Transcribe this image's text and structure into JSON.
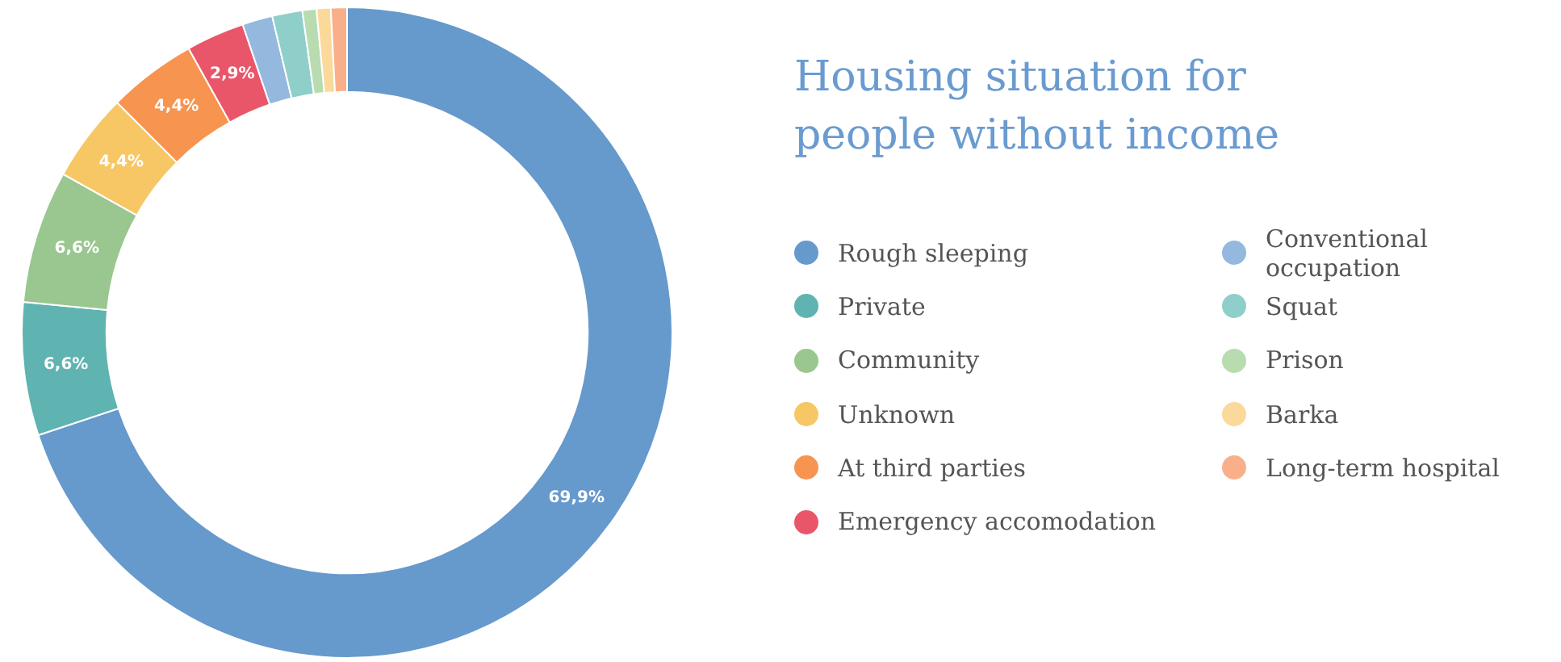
{
  "chart_data": {
    "type": "donut",
    "title": "Housing situation for people without income",
    "categories": [
      "Rough sleeping",
      "Private",
      "Community",
      "Unknown",
      "At third parties",
      "Emergency accomodation",
      "Conventional occupation",
      "Squat",
      "Prison",
      "Barka",
      "Long-term hospital"
    ],
    "values": [
      69.9,
      6.6,
      6.6,
      4.4,
      4.4,
      2.9,
      1.5,
      1.5,
      0.7,
      0.7,
      0.8
    ],
    "value_labels": [
      "69,9%",
      "6,6%",
      "6,6%",
      "4,4%",
      "4,4%",
      "2,9%",
      null,
      null,
      null,
      null,
      null
    ],
    "colors": [
      "#6699cc",
      "#5fb3b0",
      "#99c78f",
      "#f8c765",
      "#f79450",
      "#e9566a",
      "#94b8de",
      "#8fcfc9",
      "#b8dcb0",
      "#fbd99a",
      "#f9b08a"
    ],
    "legend": "right"
  }
}
